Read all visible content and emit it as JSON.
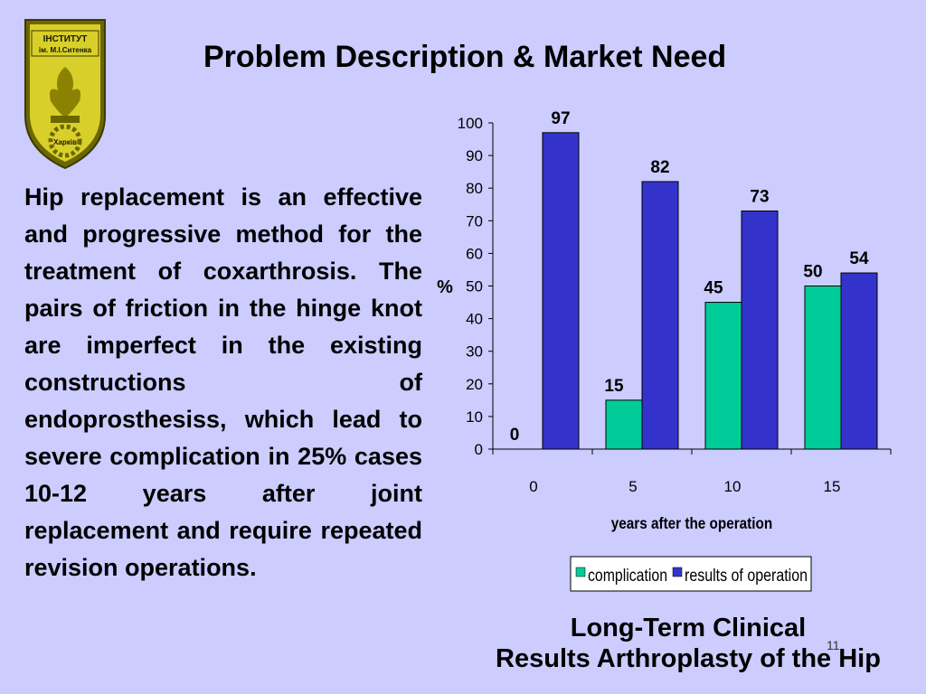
{
  "title": "Problem Description & Market Need",
  "logo": {
    "text_line1": "ІНСТИТУТ",
    "text_line2": "ім. М.І.Ситенка",
    "text_bottom": "Харків"
  },
  "body_text": "Hip replacement is an effective and progressive method for the treatment of coxarthrosis. The pairs of friction in the hinge knot are imperfect in the existing constructions of endoprosthesiss, which lead to severe complication in 25% cases 10-12 years after joint replacement and require repeated revision operations.",
  "caption": {
    "line1": "Long-Term Clinical",
    "line2": "Results  Arthroplasty of the Hip"
  },
  "slide_number": "11",
  "colors": {
    "background": "#ccccff",
    "complication": "#00cc99",
    "results": "#3333cc"
  },
  "chart_data": {
    "type": "bar",
    "categories": [
      "0",
      "5",
      "10",
      "15"
    ],
    "series": [
      {
        "name": "complication",
        "values": [
          0,
          15,
          45,
          50
        ]
      },
      {
        "name": "results of operation",
        "values": [
          97,
          82,
          73,
          54
        ]
      }
    ],
    "xlabel": "years after the operation",
    "ylabel": "%",
    "ylim": [
      0,
      100
    ],
    "yticks": [
      0,
      10,
      20,
      30,
      40,
      50,
      60,
      70,
      80,
      90,
      100
    ],
    "grid": false,
    "data_labels": true,
    "legend_position": "bottom"
  }
}
